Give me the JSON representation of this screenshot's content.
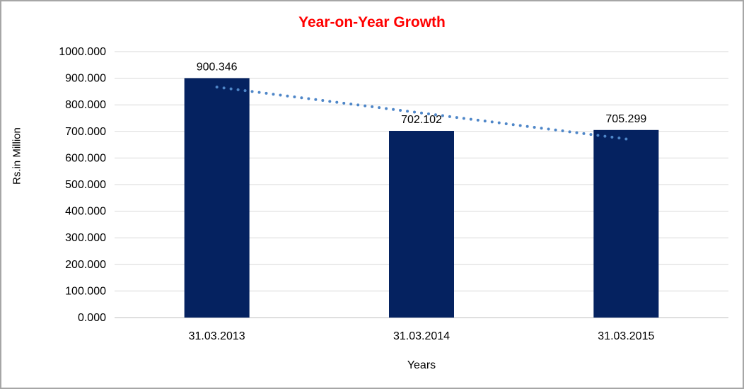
{
  "frame": {
    "background": "#FFFFFF",
    "border_color": "#A6A6A6"
  },
  "chart_data": {
    "type": "bar",
    "title": "Year-on-Year Growth",
    "title_color": "#FF0000",
    "categories": [
      "31.03.2013",
      "31.03.2014",
      "31.03.2015"
    ],
    "values": [
      900.346,
      702.102,
      705.299
    ],
    "data_labels": [
      "900.346",
      "702.102",
      "705.299"
    ],
    "xlabel": "Years",
    "ylabel": "Rs.in Million",
    "ylim": [
      0,
      1000
    ],
    "ytick_step": 100,
    "ytick_labels": [
      "0.000",
      "100.000",
      "200.000",
      "300.000",
      "400.000",
      "500.000",
      "600.000",
      "700.000",
      "800.000",
      "900.000",
      "1000.000"
    ],
    "grid": true,
    "legend": "none",
    "bar_color": "#052260",
    "gridline_color": "#D9D9D9",
    "axis_line_color": "#BFBFBF",
    "tick_label_color": "#000000",
    "trendline": {
      "type": "linear",
      "style": "dotted",
      "color": "#4E86C8",
      "endpoint_values": [
        866.8,
        671.7
      ],
      "from_category_index": 0,
      "to_category_index": 2
    }
  }
}
